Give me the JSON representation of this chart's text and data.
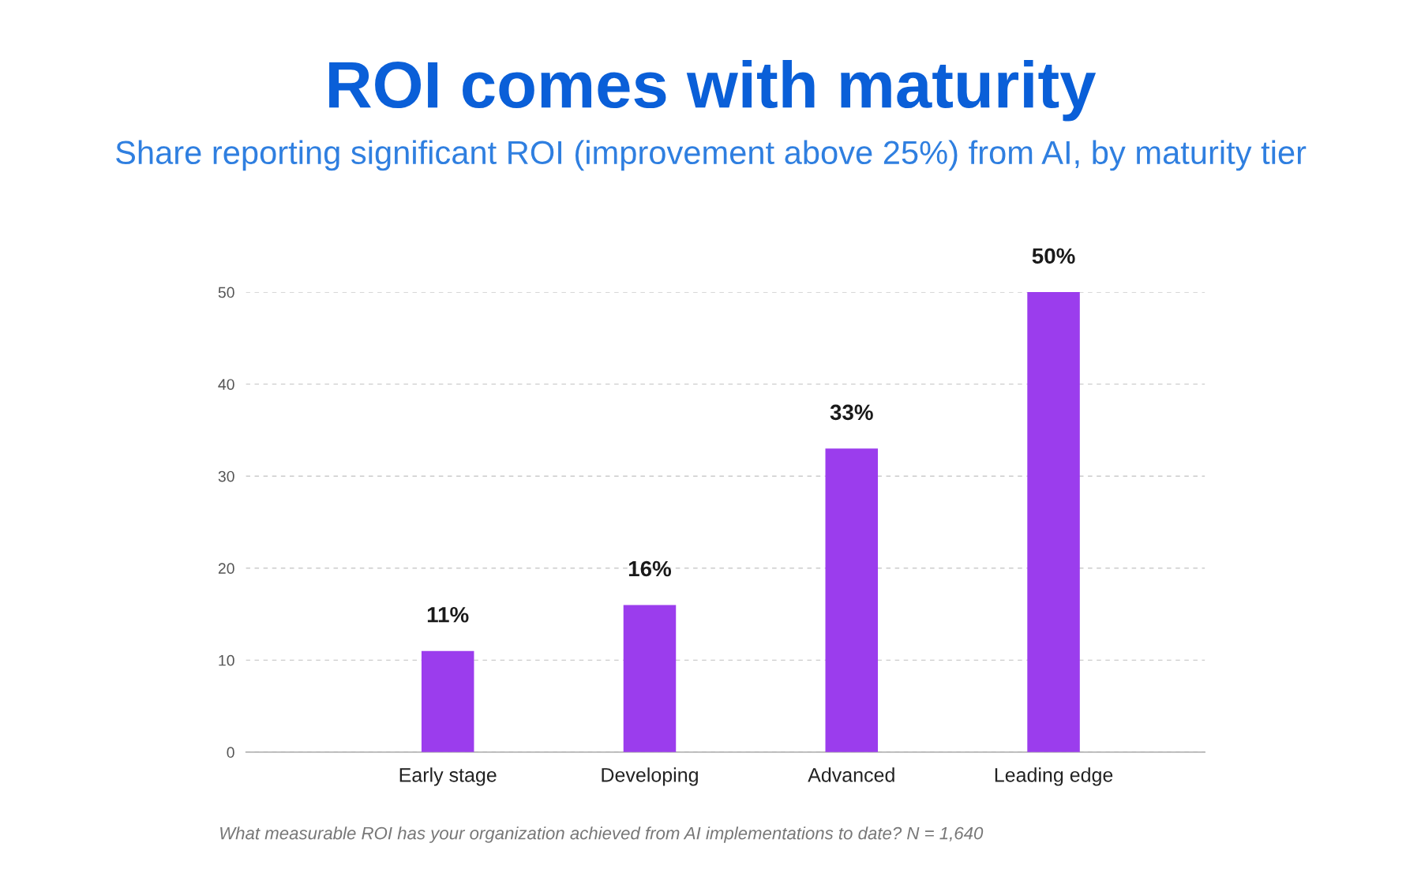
{
  "chart_data": {
    "type": "bar",
    "title": "ROI comes with maturity",
    "subtitle": "Share reporting significant ROI (improvement above 25%) from AI, by maturity tier",
    "categories": [
      "Early stage",
      "Developing",
      "Advanced",
      "Leading edge"
    ],
    "values": [
      11,
      16,
      33,
      50
    ],
    "value_labels": [
      "11%",
      "16%",
      "33%",
      "50%"
    ],
    "color": "#9b3ded",
    "ylim": [
      0,
      50
    ],
    "yticks": [
      0,
      10,
      20,
      30,
      40,
      50
    ],
    "grid": "y",
    "annotations": [
      "What measurable ROI has your organization achieved from AI implementations to date? N = 1,640"
    ]
  }
}
